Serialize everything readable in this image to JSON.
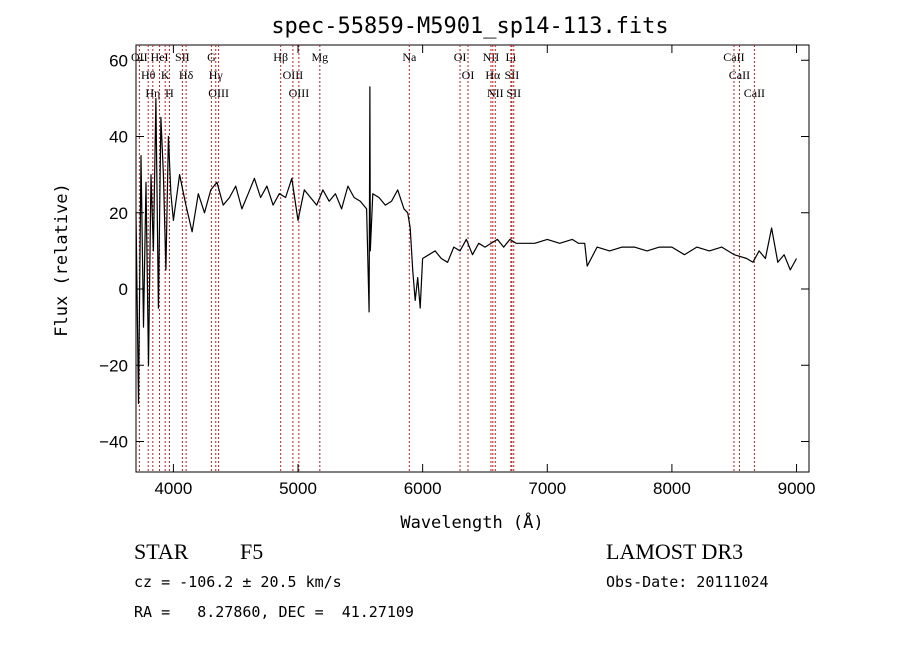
{
  "chart_data": {
    "type": "line",
    "title": "spec-55859-M5901_sp14-113.fits",
    "xlabel": "Wavelength (Å)",
    "ylabel": "Flux (relative)",
    "xlim": [
      3700,
      9100
    ],
    "ylim": [
      -48,
      64
    ],
    "xticks": [
      4000,
      5000,
      6000,
      7000,
      8000,
      9000
    ],
    "yticks": [
      -40,
      -20,
      0,
      20,
      40,
      60
    ],
    "series": [
      {
        "name": "flux",
        "x": [
          3700,
          3720,
          3740,
          3760,
          3780,
          3800,
          3820,
          3840,
          3860,
          3880,
          3900,
          3920,
          3940,
          3960,
          3980,
          4000,
          4050,
          4100,
          4150,
          4200,
          4250,
          4300,
          4350,
          4400,
          4450,
          4500,
          4550,
          4600,
          4650,
          4700,
          4750,
          4800,
          4850,
          4900,
          4950,
          5000,
          5050,
          5100,
          5150,
          5200,
          5250,
          5300,
          5350,
          5400,
          5450,
          5500,
          5550,
          5570,
          5577,
          5580,
          5600,
          5650,
          5700,
          5750,
          5800,
          5850,
          5880,
          5900,
          5920,
          5940,
          5960,
          5980,
          6000,
          6050,
          6100,
          6150,
          6200,
          6250,
          6300,
          6350,
          6400,
          6450,
          6500,
          6550,
          6600,
          6650,
          6700,
          6750,
          6800,
          6900,
          7000,
          7100,
          7200,
          7250,
          7300,
          7320,
          7400,
          7500,
          7600,
          7700,
          7800,
          7900,
          8000,
          8100,
          8200,
          8300,
          8400,
          8500,
          8600,
          8650,
          8700,
          8750,
          8800,
          8850,
          8900,
          8950,
          9000
        ],
        "values": [
          20,
          -30,
          35,
          -10,
          28,
          -20,
          30,
          10,
          50,
          -5,
          45,
          30,
          5,
          40,
          25,
          18,
          30,
          22,
          15,
          25,
          20,
          26,
          28,
          22,
          24,
          27,
          21,
          25,
          29,
          24,
          27,
          22,
          25,
          24,
          29,
          18,
          26,
          24,
          22,
          26,
          23,
          25,
          21,
          27,
          24,
          23,
          21,
          -6,
          53,
          10,
          25,
          24,
          22,
          23,
          26,
          21,
          20,
          16,
          5,
          -3,
          3,
          -5,
          8,
          9,
          10,
          8,
          7,
          11,
          10,
          13,
          9,
          12,
          11,
          12,
          13,
          11,
          13,
          12,
          12,
          12,
          13,
          12,
          13,
          12,
          12,
          6,
          11,
          10,
          11,
          11,
          10,
          11,
          11,
          9,
          11,
          10,
          11,
          9,
          8,
          7,
          10,
          8,
          16,
          7,
          9,
          5,
          8
        ]
      }
    ],
    "reference_lines": [
      {
        "label": "OII",
        "wavelength": 3727
      },
      {
        "label": "Hθ",
        "wavelength": 3798
      },
      {
        "label": "Hη",
        "wavelength": 3835
      },
      {
        "label": "HeI",
        "wavelength": 3889
      },
      {
        "label": "K",
        "wavelength": 3934
      },
      {
        "label": "H",
        "wavelength": 3968
      },
      {
        "label": "SII",
        "wavelength": 4072
      },
      {
        "label": "Hδ",
        "wavelength": 4102
      },
      {
        "label": "G",
        "wavelength": 4305
      },
      {
        "label": "Hγ",
        "wavelength": 4340
      },
      {
        "label": "OIII",
        "wavelength": 4363
      },
      {
        "label": "Hβ",
        "wavelength": 4861
      },
      {
        "label": "OIII",
        "wavelength": 4959
      },
      {
        "label": "OIII",
        "wavelength": 5007
      },
      {
        "label": "Mg",
        "wavelength": 5175
      },
      {
        "label": "Na",
        "wavelength": 5893
      },
      {
        "label": "OI",
        "wavelength": 6300
      },
      {
        "label": "OI",
        "wavelength": 6364
      },
      {
        "label": "NII",
        "wavelength": 6548
      },
      {
        "label": "Hα",
        "wavelength": 6563
      },
      {
        "label": "NII",
        "wavelength": 6583
      },
      {
        "label": "Li",
        "wavelength": 6708
      },
      {
        "label": "SII",
        "wavelength": 6716
      },
      {
        "label": "SII",
        "wavelength": 6731
      },
      {
        "label": "CaII",
        "wavelength": 8498
      },
      {
        "label": "CaII",
        "wavelength": 8542
      },
      {
        "label": "CaII",
        "wavelength": 8662
      }
    ]
  },
  "info": {
    "object_type": "STAR",
    "subclass": "F5",
    "survey": "LAMOST DR3",
    "cz_line": "cz = -106.2 ± 20.5 km/s",
    "obs_date_line": "Obs-Date: 20111024",
    "coords_line": "RA =   8.27860, DEC =  41.27109"
  },
  "colors": {
    "line": "#000000",
    "ref_line": "#b22222"
  }
}
